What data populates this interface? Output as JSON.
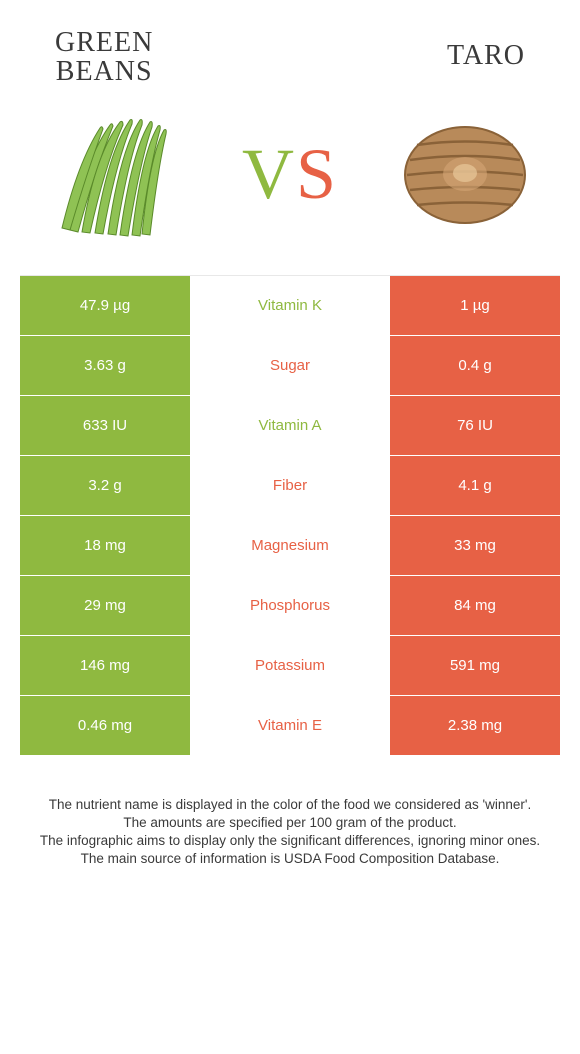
{
  "colors": {
    "green": "#8fb940",
    "orange": "#e76145",
    "text": "#3a3a3a"
  },
  "header": {
    "left_title_line1": "Green",
    "left_title_line2": "beans",
    "right_title": "Taro",
    "vs": "VS"
  },
  "rows": [
    {
      "left": "47.9 µg",
      "label": "Vitamin K",
      "right": "1 µg",
      "winner": "left"
    },
    {
      "left": "3.63 g",
      "label": "Sugar",
      "right": "0.4 g",
      "winner": "right"
    },
    {
      "left": "633 IU",
      "label": "Vitamin A",
      "right": "76 IU",
      "winner": "left"
    },
    {
      "left": "3.2 g",
      "label": "Fiber",
      "right": "4.1 g",
      "winner": "right"
    },
    {
      "left": "18 mg",
      "label": "Magnesium",
      "right": "33 mg",
      "winner": "right"
    },
    {
      "left": "29 mg",
      "label": "Phosphorus",
      "right": "84 mg",
      "winner": "right"
    },
    {
      "left": "146 mg",
      "label": "Potassium",
      "right": "591 mg",
      "winner": "right"
    },
    {
      "left": "0.46 mg",
      "label": "Vitamin E",
      "right": "2.38 mg",
      "winner": "right"
    }
  ],
  "footer": {
    "line1": "The nutrient name is displayed in the color of the food we considered as 'winner'.",
    "line2": "The amounts are specified per 100 gram of the product.",
    "line3": "The infographic aims to display only the significant differences, ignoring minor ones.",
    "line4": "The main source of information is USDA Food Composition Database."
  }
}
